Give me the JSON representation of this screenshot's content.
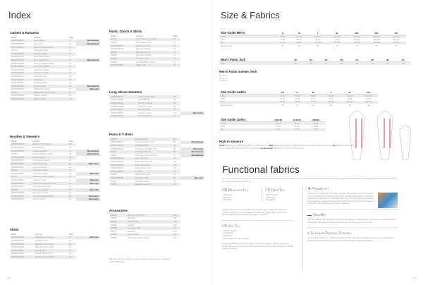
{
  "left_page": {
    "title": "Index",
    "page_number": "116",
    "col_headers": [
      "Model",
      "Garment",
      "Page"
    ],
    "sections": [
      {
        "id": "jackets",
        "title": "Jackets & Rainwear",
        "rows": [
          [
            "355406/354507",
            "Basic Jacket",
            "12",
            "Discontinued"
          ],
          [
            "354408/354408",
            "Basic Vest",
            "12",
            "Discontinued"
          ],
          [
            "355470/355471",
            "Cascade Stretch Fleece",
            "27",
            ""
          ],
          [
            "354414",
            "Clearwater Jacket",
            "14",
            ""
          ],
          [
            "354456/354470",
            "Ledbetter Jacket",
            "21",
            ""
          ],
          [
            "354706/354715",
            "Hood Stretch Jacket",
            "9",
            ""
          ],
          [
            "355452/355450",
            "Hood Striped Vest",
            "11",
            "Discontinued"
          ],
          [
            "354456/355459",
            "Navigate Softshell Jacket",
            "20",
            ""
          ],
          [
            "354486/355430",
            "North Shore Jacket",
            "28",
            ""
          ],
          [
            "354436/354430",
            "North Shore Parka",
            "28",
            ""
          ],
          [
            "355450/355455",
            "Oak Harbor Jacket",
            "24",
            ""
          ],
          [
            "355456/355457",
            "Oak Harbor Vest",
            "24",
            ""
          ],
          [
            "354464/354463",
            "Ozette Vest",
            "22",
            ""
          ],
          [
            "354454/354457",
            "Parkwood Jacket",
            "26",
            ""
          ],
          [
            "355450/355451",
            "Shelton Jacket",
            "22",
            "Discontinued"
          ],
          [
            "355436/355459",
            "Weatherford Jacket",
            "16",
            "New color"
          ],
          [
            "355452",
            "Weatherford Fleece Jacket",
            "16",
            ""
          ],
          [
            "355450/355451",
            "Whidbey Jacket",
            "18",
            ""
          ],
          [
            "355451/355451",
            "Windom Jacket",
            "34",
            ""
          ]
        ]
      },
      {
        "id": "hoodies",
        "title": "Hoodies & Sweaters",
        "rows": [
          [
            "355450/355452",
            "Bellevue Knit Sweater",
            "38",
            ""
          ],
          [
            "355452/355460",
            "Beloit Pullover",
            "38",
            ""
          ],
          [
            "355450/355451",
            "Chelsea Sweater",
            "42",
            "Discontinued"
          ],
          [
            "355456",
            "Everett Half Zip Sweater",
            "36",
            "Discontinued"
          ],
          [
            "355415/355418",
            "Everett Crewe",
            "36",
            ""
          ],
          [
            "355415/355413",
            "Hood Fleece Sweater",
            "39",
            ""
          ],
          [
            "355454/355458",
            "Hoodfield Full Zip",
            "38",
            "New colors"
          ],
          [
            "355455/355457",
            "Kingston Half Zip",
            "40",
            ""
          ],
          [
            "355455",
            "Lakeside Cardigan",
            "40",
            ""
          ],
          [
            "355450/355451",
            "Lakeside Cardigan",
            "40",
            "New color"
          ],
          [
            "355456",
            "Lakeside Half Zip Sweater",
            "40",
            ""
          ],
          [
            "355450/355451",
            "Lakeside V-Neck",
            "40",
            "New color"
          ],
          [
            "355450/355457",
            "Pemberton Cardigan Full Zip",
            "41",
            "New color"
          ],
          [
            "355451/355451",
            "Pemberton Crewneck",
            "41",
            ""
          ],
          [
            "355453",
            "Pemberton Half Zip",
            "40",
            "New color"
          ],
          [
            "355452/355452",
            "Pemberton V-neck",
            "41",
            ""
          ],
          [
            "355453/355453",
            "Pemberton Hood Full Zip",
            "38",
            "New colors"
          ],
          [
            "355450/355451",
            "Verdun V-Neck",
            "40",
            "New colors"
          ]
        ]
      },
      {
        "id": "shirts",
        "title": "Shirts",
        "rows": [
          [
            "355446/355446",
            "Advantage Long sleeve",
            "51",
            "New color"
          ],
          [
            "355451/355451",
            "Advantage Shirt",
            "51",
            ""
          ],
          [
            "355468/355466",
            "Burlington Oxford shirt",
            "58",
            ""
          ],
          [
            "355454/355450",
            "Ellensburg Denim Shirt",
            "51",
            ""
          ],
          [
            "355450/355457",
            "Kayside Shirt",
            "51",
            ""
          ],
          [
            "355452/355455",
            "Kayside Stretch Shirt",
            "52",
            ""
          ],
          [
            "355456/355450",
            "Northbrook Oxford Shirt",
            "54",
            ""
          ]
        ]
      }
    ]
  },
  "middle": {
    "sections": [
      {
        "id": "pants",
        "title": "Pants, Shorts & Skirts",
        "rows": [
          [
            "355451",
            "Burney Easy Long Pants",
            "70",
            ""
          ],
          [
            "355457",
            "Burney Easy Pants",
            "70",
            ""
          ],
          [
            "355450/355451",
            "Edgemont Chinos",
            "67",
            ""
          ],
          [
            "355452/355452",
            "Edgemont Shorts",
            "67",
            ""
          ],
          [
            "355456",
            "New Haven Pants",
            "71",
            ""
          ],
          [
            "355455",
            "New Haven Shorts",
            "71",
            ""
          ],
          [
            "355452",
            "Dunstable Skirt",
            "71",
            ""
          ],
          [
            "355453",
            "Golf Road Warm Pants",
            "70",
            ""
          ],
          [
            "355450/355451",
            "Toffee Pants",
            "68",
            ""
          ]
        ]
      },
      {
        "id": "longsleeve",
        "title": "Long Sleeve Sweaters",
        "rows": [
          [
            "355455/355451",
            "Fuqua Full Zip Jacket",
            "78",
            ""
          ],
          [
            "355450/355452",
            "Fuqua Half Zip",
            "78",
            ""
          ],
          [
            "355450/355451",
            "Grey Bay Half Zip",
            "83",
            ""
          ],
          [
            "355450/355450",
            "Jonesport Full Zip",
            "82",
            ""
          ],
          [
            "355456/355455",
            "Jonesport Vest",
            "83",
            ""
          ],
          [
            "355450/355451",
            "Jonesport Jacket",
            "83",
            "New colors"
          ],
          [
            "355451/355451",
            "Trueline Half Zip",
            "84",
            ""
          ]
        ]
      },
      {
        "id": "polos",
        "title": "Polos & T-shirts",
        "rows": [
          [
            "355455",
            "Advantage Polo",
            "86",
            ""
          ],
          [
            "355450/355451",
            "Advantage Performance",
            "86",
            "Discontinued"
          ],
          [
            "355450/355450",
            "Advantage Polo",
            "86",
            ""
          ],
          [
            "355456/355456",
            "Advantage Polo Plain Knit",
            "86",
            "New colors"
          ],
          [
            "355457",
            "Advantage Interlock",
            "90",
            "Discontinued"
          ],
          [
            "355456",
            "Advantage Stretch Pq Polo",
            "91",
            "Discontinued"
          ],
          [
            "355450/355450",
            "Hammond Polo",
            "96",
            ""
          ],
          [
            "355450/355450",
            "Manzanita Pique Polo",
            "100",
            ""
          ],
          [
            "355450/355452",
            "Sunset Mesh Polo",
            "100",
            ""
          ],
          [
            "355450/355451",
            "Sunset Stretch Polo",
            "101",
            ""
          ],
          [
            "355450/355451",
            "Ivy Crew",
            "97",
            ""
          ],
          [
            "355454",
            "Value Polo Combo",
            "97",
            ""
          ],
          [
            "355450/355452",
            "Value Polo Solid",
            "98",
            "New color"
          ],
          [
            "355451",
            "Value Polo Striped",
            "97",
            ""
          ],
          [
            "355452",
            "Value Polo Jacquard",
            "98",
            ""
          ]
        ]
      },
      {
        "id": "accessories",
        "title": "Accessories",
        "rows": [
          [
            "355454",
            "Belmont Cotton Belt",
            "103",
            ""
          ],
          [
            "355457",
            "Bloo Bag",
            "104",
            ""
          ],
          [
            "355455",
            "Chandler Belt",
            "105",
            ""
          ],
          [
            "355450",
            "Gettong",
            "103",
            ""
          ],
          [
            "355450",
            "Homeward Cap",
            "103",
            ""
          ],
          [
            "355475",
            "Lanyards",
            "105",
            ""
          ],
          [
            "355456",
            "Neeson Cap",
            "103",
            ""
          ],
          [
            "355456",
            "Weekender Weekend Bird",
            "103",
            ""
          ]
        ]
      }
    ],
    "note": "We reserve for any reprinting. Colors deviations can occur due to technical printing differences."
  },
  "right_page": {
    "title": "Size & Fabrics",
    "page_number": "117",
    "mens": {
      "title": "Size Guide Men's",
      "cols": [
        "S",
        "M",
        "L",
        "XL",
        "XXL",
        "3XL",
        "4XL"
      ],
      "rows": [
        [
          "Chest",
          "88-96",
          "96-104",
          "104-112",
          "112-120",
          "120-128",
          "128-136",
          "136-144"
        ],
        [
          "Waist",
          "74-80",
          "80-86",
          "86-92",
          "92-98",
          "98-104",
          "104-110",
          "110-116"
        ],
        [
          "Hip",
          "92-96",
          "96-104",
          "104-112",
          "112-120",
          "120-128",
          "128-136",
          "136-144"
        ],
        [
          "Inseam length",
          "81",
          "82",
          "82",
          "83",
          "83",
          "84",
          "84"
        ]
      ]
    },
    "mens_pants": {
      "title": "Men's Pants, inch",
      "cols": [
        "30\"",
        "31\"",
        "32\"",
        "33\"",
        "34\"",
        "36\"",
        "38\"",
        "40\""
      ],
      "rows": [
        [
          "Waist",
          "80",
          "82",
          "84",
          "86",
          "88",
          "93",
          "98",
          "103"
        ]
      ]
    },
    "inseam": {
      "title": "Men's Pants inseam, inch",
      "lines": [
        "30\" 76 cm",
        "32\" 81 cm",
        "34\" 86 cm"
      ]
    },
    "ladies": {
      "title": "Size Guide Ladies",
      "cols": [
        "XS",
        "S",
        "M",
        "L",
        "XL",
        "XXL"
      ],
      "rows": [
        [
          "Chest",
          "78-82",
          "82-86",
          "86-92",
          "92-98",
          "98-104",
          "104-110"
        ],
        [
          "Waist",
          "62-66",
          "66-70",
          "70-76",
          "76-82",
          "82-88",
          "88-94"
        ],
        [
          "Hip",
          "86-90",
          "90-94",
          "94-100",
          "100-106",
          "106-112",
          "112-118"
        ],
        [
          "Inseam length",
          "78",
          "79",
          "79",
          "80",
          "80",
          "81"
        ]
      ]
    },
    "junior": {
      "title": "Size Guide Junior",
      "cols": [
        "122/128",
        "134/140",
        "146/152"
      ],
      "rows": [
        [
          "Chest",
          "62-66",
          "66-72",
          "72-78"
        ],
        [
          "Waist",
          "56-60",
          "60-64",
          "64-68"
        ],
        [
          "Hip",
          "66-70",
          "70-76",
          "76-82"
        ]
      ]
    },
    "how_to": {
      "title": "How to measure",
      "text": [
        [
          "Chest:",
          " Measure the widest part of chest, up under the arms. "
        ],
        [
          "Waist:",
          " Measure around your natural waistline. Keep tape measure a bit loose. "
        ],
        [
          "Hip:",
          " Measure the widest part of the hip, around the fullest part, keep tape together. "
        ],
        [
          "Inseam length:",
          " Measure from crotch to bottom of leg."
        ]
      ]
    },
    "fabrics": {
      "title": "Functional fabrics",
      "intro": "You can't control the weather but our advanced performance wear is proof you can challenge it. The Cutter & Buck collection offers a broad range of lightweight, breathable, quick drying clothes designed with attention for maximum freedom of movement.",
      "weathertec": {
        "name": "CB WeatherTec",
        "items": [
          "Waterproof",
          "Windproof",
          "Breathable"
        ]
      },
      "windtec": {
        "name": "CB WindTec",
        "items": [
          "Wind resistant",
          "Lightweight",
          "Breathable"
        ]
      },
      "outer_text": "Outdoor doesn't have to mean fierce, be sure the Cutter & Buck CB WeatherTec collection keeps you dry and pleasant no matter the weather when, with the best technical features developed and thoroughly researched.",
      "drytec": {
        "name": "CB DryTec",
        "items": [
          "Moisture wicking",
          "Comfortable",
          "Breathable",
          "Allows fabric and water capacity"
        ],
        "text": "Stay comfortable with the Cutter & Buck CB DryTec collection. Offering an array of breathable moisture management technologies these garments are designed to conquer heat and humidity."
      },
      "primaloft": {
        "name": "PrimaLoft",
        "color": "#c8102e",
        "text": "PrimaLoft is a revolutionary microfiber insulation that provides warmth even when wet. Its superfine fibers trap body heat, and is specially treated with a proprietary finish that prevents them from absorbing moisture, and stays lightweight and warm in wet conditions, easily compressible for packing and wear. PrimaLoft insulation is made with 100% recycled post-consumer materials."
      },
      "ventair": {
        "name": "VentAir",
        "text": "Vent Air ventilation fits seamlessly, a unique body-mapped ventilation system that gives you better breathing in combination with excellent moisture release and comfort where you need it most."
      },
      "sorona": {
        "name": "Sustans Dupont Sorona",
        "color": "#c99a2e",
        "text": "Sustans DuPont Sorona is a plant-based polymer fiber. The featured production process is using 30% less energy and releases 63% less greenhouse gas compared to traditional materials."
      }
    }
  }
}
